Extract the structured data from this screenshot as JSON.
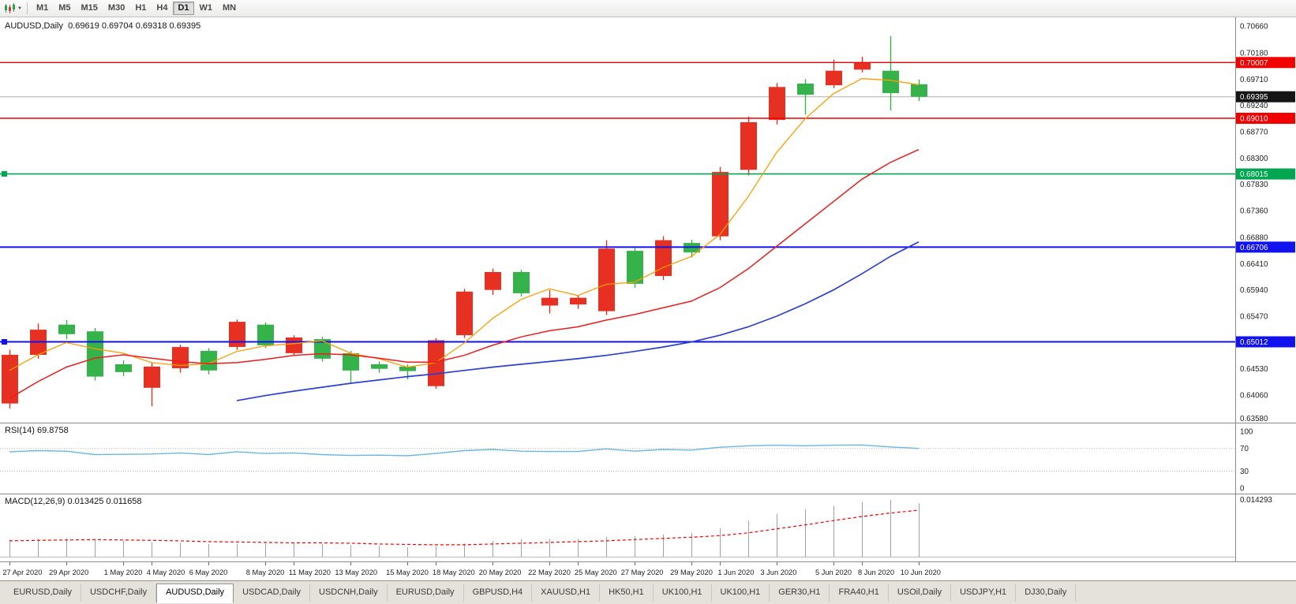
{
  "toolbar": {
    "chart_icon": "candlestick-chart-icon",
    "dropdown_icon": "chevron-down-icon",
    "timeframes": [
      "M1",
      "M5",
      "M15",
      "M30",
      "H1",
      "H4",
      "D1",
      "W1",
      "MN"
    ],
    "active_timeframe": "D1"
  },
  "main_chart": {
    "title": "AUDUSD,Daily  0.69619 0.69704 0.69318 0.69395"
  },
  "rsi_panel": {
    "label": "RSI(14) 69.8758"
  },
  "macd_panel": {
    "label": "MACD(12,26,9) 0.013425 0.011658"
  },
  "tabs": {
    "items": [
      "EURUSD,Daily",
      "USDCHF,Daily",
      "AUDUSD,Daily",
      "USDCAD,Daily",
      "USDCNH,Daily",
      "EURUSD,Daily",
      "GBPUSD,H4",
      "XAUUSD,H1",
      "HK50,H1",
      "UK100,H1",
      "UK100,H1",
      "GER30,H1",
      "FRA40,H1",
      "USOil,Daily",
      "USDJPY,H1",
      "DJ30,Daily"
    ],
    "active_index": 2
  },
  "chart_data": {
    "type": "candlestick",
    "symbol": "AUDUSD",
    "timeframe": "Daily",
    "current_bar": {
      "open": 0.69619,
      "high": 0.69704,
      "low": 0.69318,
      "close": 0.69395
    },
    "price_axis": {
      "top": 0.70815,
      "bottom": 0.63567,
      "tick_labels": [
        "0.70660",
        "0.70180",
        "0.69710",
        "0.69240",
        "0.68770",
        "0.68300",
        "0.67830",
        "0.67360",
        "0.66880",
        "0.66410",
        "0.65940",
        "0.65470",
        "0.64530",
        "0.64060",
        "0.63580"
      ]
    },
    "candles": [
      {
        "d": "27 Apr 2020",
        "o": 0.6391,
        "h": 0.6487,
        "l": 0.6382,
        "c": 0.6478
      },
      {
        "d": "28 Apr 2020",
        "o": 0.6478,
        "h": 0.6534,
        "l": 0.6471,
        "c": 0.6523
      },
      {
        "d": "29 Apr 2020",
        "o": 0.6532,
        "h": 0.654,
        "l": 0.6506,
        "c": 0.6515
      },
      {
        "d": "30 Apr 2020",
        "o": 0.652,
        "h": 0.6526,
        "l": 0.6432,
        "c": 0.6439
      },
      {
        "d": "1 May 2020",
        "o": 0.6461,
        "h": 0.6468,
        "l": 0.644,
        "c": 0.6447
      },
      {
        "d": "4 May 2020",
        "o": 0.6419,
        "h": 0.6464,
        "l": 0.6386,
        "c": 0.6457
      },
      {
        "d": "5 May 2020",
        "o": 0.6454,
        "h": 0.6496,
        "l": 0.6446,
        "c": 0.6492
      },
      {
        "d": "6 May 2020",
        "o": 0.6485,
        "h": 0.649,
        "l": 0.6443,
        "c": 0.645
      },
      {
        "d": "7 May 2020",
        "o": 0.6492,
        "h": 0.6541,
        "l": 0.6487,
        "c": 0.6537
      },
      {
        "d": "8 May 2020",
        "o": 0.6532,
        "h": 0.6536,
        "l": 0.649,
        "c": 0.6495
      },
      {
        "d": "11 May 2020",
        "o": 0.6481,
        "h": 0.6513,
        "l": 0.6477,
        "c": 0.6509
      },
      {
        "d": "12 May 2020",
        "o": 0.6506,
        "h": 0.651,
        "l": 0.6466,
        "c": 0.6471
      },
      {
        "d": "13 May 2020",
        "o": 0.6481,
        "h": 0.6485,
        "l": 0.6428,
        "c": 0.645
      },
      {
        "d": "14 May 2020",
        "o": 0.6461,
        "h": 0.6466,
        "l": 0.6446,
        "c": 0.6453
      },
      {
        "d": "15 May 2020",
        "o": 0.6457,
        "h": 0.6461,
        "l": 0.6434,
        "c": 0.6449
      },
      {
        "d": "18 May 2020",
        "o": 0.6422,
        "h": 0.6508,
        "l": 0.6417,
        "c": 0.6504
      },
      {
        "d": "19 May 2020",
        "o": 0.6513,
        "h": 0.6596,
        "l": 0.6508,
        "c": 0.6591
      },
      {
        "d": "20 May 2020",
        "o": 0.6594,
        "h": 0.6632,
        "l": 0.6585,
        "c": 0.6626
      },
      {
        "d": "21 May 2020",
        "o": 0.6626,
        "h": 0.663,
        "l": 0.6582,
        "c": 0.6588
      },
      {
        "d": "22 May 2020",
        "o": 0.6566,
        "h": 0.6594,
        "l": 0.6552,
        "c": 0.658
      },
      {
        "d": "25 May 2020",
        "o": 0.6568,
        "h": 0.6585,
        "l": 0.656,
        "c": 0.658
      },
      {
        "d": "26 May 2020",
        "o": 0.6556,
        "h": 0.6683,
        "l": 0.6549,
        "c": 0.6668
      },
      {
        "d": "27 May 2020",
        "o": 0.6664,
        "h": 0.667,
        "l": 0.6598,
        "c": 0.6605
      },
      {
        "d": "28 May 2020",
        "o": 0.6619,
        "h": 0.669,
        "l": 0.6612,
        "c": 0.6683
      },
      {
        "d": "29 May 2020",
        "o": 0.6678,
        "h": 0.6684,
        "l": 0.6652,
        "c": 0.6661
      },
      {
        "d": "1 Jun 2020",
        "o": 0.669,
        "h": 0.6814,
        "l": 0.6683,
        "c": 0.6805
      },
      {
        "d": "2 Jun 2020",
        "o": 0.6809,
        "h": 0.6904,
        "l": 0.6799,
        "c": 0.6894
      },
      {
        "d": "3 Jun 2020",
        "o": 0.6898,
        "h": 0.6964,
        "l": 0.689,
        "c": 0.6957
      },
      {
        "d": "4 Jun 2020",
        "o": 0.6963,
        "h": 0.6971,
        "l": 0.6908,
        "c": 0.6943
      },
      {
        "d": "5 Jun 2020",
        "o": 0.696,
        "h": 0.7006,
        "l": 0.6955,
        "c": 0.6986
      },
      {
        "d": "8 Jun 2020",
        "o": 0.6988,
        "h": 0.7011,
        "l": 0.6983,
        "c": 0.7
      },
      {
        "d": "9 Jun 2020",
        "o": 0.6986,
        "h": 0.7048,
        "l": 0.6915,
        "c": 0.6946
      },
      {
        "d": "10 Jun 2020",
        "o": 0.69619,
        "h": 0.69704,
        "l": 0.69318,
        "c": 0.69395
      }
    ],
    "ma": {
      "fast": [
        0.645,
        0.6478,
        0.65,
        0.6489,
        0.6481,
        0.6464,
        0.6459,
        0.6462,
        0.6484,
        0.6494,
        0.6498,
        0.6503,
        0.6481,
        0.6471,
        0.6456,
        0.6464,
        0.6499,
        0.6543,
        0.6577,
        0.6596,
        0.6584,
        0.6604,
        0.6608,
        0.6634,
        0.6654,
        0.6693,
        0.6761,
        0.684,
        0.69,
        0.6945,
        0.6972,
        0.6969,
        0.6961
      ],
      "mid": [
        0.64,
        0.643,
        0.6456,
        0.6472,
        0.6478,
        0.6472,
        0.6466,
        0.6462,
        0.6464,
        0.647,
        0.6477,
        0.648,
        0.6478,
        0.6472,
        0.6465,
        0.6465,
        0.6477,
        0.6495,
        0.651,
        0.6521,
        0.6528,
        0.654,
        0.655,
        0.6562,
        0.6574,
        0.6598,
        0.6632,
        0.6672,
        0.6712,
        0.6752,
        0.6792,
        0.6822,
        0.6845
      ],
      "slow": [
        null,
        null,
        null,
        null,
        null,
        null,
        null,
        null,
        0.6396,
        0.6405,
        0.6413,
        0.642,
        0.6427,
        0.6433,
        0.6439,
        0.6444,
        0.645,
        0.6456,
        0.6461,
        0.6466,
        0.6471,
        0.6477,
        0.6484,
        0.6492,
        0.6501,
        0.6513,
        0.6528,
        0.6547,
        0.6569,
        0.6594,
        0.6623,
        0.6654,
        0.668
      ]
    },
    "hlines": [
      {
        "price": 0.70007,
        "label": "0.70007",
        "color": "#f20000",
        "width": 1.4,
        "marker": false
      },
      {
        "price": 0.6901,
        "label": "0.69010",
        "color": "#f20000",
        "width": 1.4,
        "marker": false
      },
      {
        "price": 0.68015,
        "label": "0.68015",
        "color": "#00a651",
        "width": 1.6,
        "marker": true
      },
      {
        "price": 0.66706,
        "label": "0.66706",
        "color": "#1212ee",
        "width": 2,
        "marker": false
      },
      {
        "price": 0.65012,
        "label": "0.65012",
        "color": "#1212ee",
        "width": 2,
        "marker": true
      }
    ],
    "current_price_line": {
      "price": 0.69395,
      "label": "0.69395",
      "color": "#b0b0b0",
      "badge_color": "#151515"
    },
    "rsi": {
      "period": 14,
      "value": 69.8758,
      "levels": [
        100,
        70,
        30,
        0
      ],
      "values": [
        64,
        66,
        65,
        59,
        59.5,
        60,
        62,
        59,
        64,
        61,
        62,
        59,
        57.5,
        58,
        57,
        61,
        66,
        68,
        65,
        64.5,
        64.5,
        69,
        65,
        68,
        67,
        72,
        74.5,
        75.5,
        74.5,
        75.5,
        76,
        72.5,
        69.88
      ]
    },
    "macd": {
      "fast": 12,
      "slow": 26,
      "signal_period": 9,
      "value": 0.013425,
      "signal_value": 0.011658,
      "axis_max": 0.014293,
      "axis_label": "0.014293",
      "hist": [
        0.0043,
        0.0045,
        0.0046,
        0.0044,
        0.004,
        0.0037,
        0.0035,
        0.0032,
        0.0033,
        0.0034,
        0.0034,
        0.0032,
        0.0029,
        0.0027,
        0.0024,
        0.0026,
        0.0033,
        0.004,
        0.0044,
        0.0045,
        0.0045,
        0.005,
        0.0052,
        0.0056,
        0.006,
        0.0072,
        0.009,
        0.0108,
        0.012,
        0.0128,
        0.0138,
        0.0143,
        0.0134
      ],
      "signal": [
        0.004,
        0.0041,
        0.0042,
        0.0043,
        0.0042,
        0.0041,
        0.004,
        0.0038,
        0.0037,
        0.0036,
        0.0035,
        0.0035,
        0.0034,
        0.0032,
        0.0031,
        0.003,
        0.003,
        0.0032,
        0.0034,
        0.0036,
        0.0038,
        0.004,
        0.0043,
        0.0046,
        0.0049,
        0.0053,
        0.006,
        0.007,
        0.008,
        0.0091,
        0.0101,
        0.011,
        0.0117
      ]
    },
    "date_labels": [
      {
        "i": 0,
        "label": "27 Apr 2020"
      },
      {
        "i": 2,
        "label": "29 Apr 2020"
      },
      {
        "i": 4,
        "label": "1 May 2020"
      },
      {
        "i": 5,
        "label": "4 May 2020"
      },
      {
        "i": 7,
        "label": "6 May 2020"
      },
      {
        "i": 9,
        "label": "8 May 2020"
      },
      {
        "i": 10,
        "label": "11 May 2020"
      },
      {
        "i": 12,
        "label": "13 May 2020"
      },
      {
        "i": 14,
        "label": "15 May 2020"
      },
      {
        "i": 15,
        "label": "18 May 2020"
      },
      {
        "i": 17,
        "label": "20 May 2020"
      },
      {
        "i": 19,
        "label": "22 May 2020"
      },
      {
        "i": 20,
        "label": "25 May 2020"
      },
      {
        "i": 22,
        "label": "27 May 2020"
      },
      {
        "i": 24,
        "label": "29 May 2020"
      },
      {
        "i": 25,
        "label": "1 Jun 2020"
      },
      {
        "i": 27,
        "label": "3 Jun 2020"
      },
      {
        "i": 29,
        "label": "5 Jun 2020"
      },
      {
        "i": 30,
        "label": "8 Jun 2020"
      },
      {
        "i": 32,
        "label": "10 Jun 2020"
      }
    ],
    "colors": {
      "bull": "#e53022",
      "bear": "#36b24a",
      "ma_fast": "#ff9c00",
      "ma_mid": "#ee1c1c",
      "ma_slow": "#2b3fd6",
      "rsi": "#69b7e3",
      "macd_hist": "#a0a0a0",
      "macd_signal": "#ff0000"
    }
  }
}
